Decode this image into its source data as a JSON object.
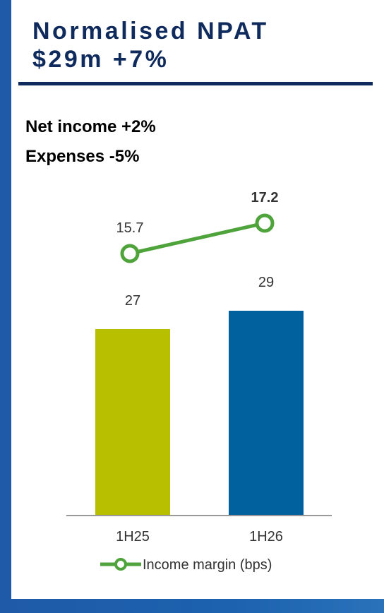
{
  "header": {
    "title_line1": "Normalised NPAT",
    "title_line2": "$29m +7%"
  },
  "kpis": [
    {
      "label": "Net income +2%"
    },
    {
      "label": "Expenses -5%"
    }
  ],
  "colors": {
    "bar_1h25": "#b8bf00",
    "bar_1h26": "#00619e",
    "line": "#4ea33b",
    "navy": "#0f2a5c",
    "frame": "#1f5aa8"
  },
  "chart_data": {
    "type": "bar",
    "categories": [
      "1H25",
      "1H26"
    ],
    "series": [
      {
        "values": [
          27,
          29
        ],
        "value_labels": [
          "27",
          "29"
        ]
      },
      {
        "name": "Income margin (bps)",
        "type": "line",
        "values": [
          15.7,
          17.2
        ],
        "value_labels": [
          "15.7",
          "17.2"
        ]
      }
    ],
    "legend": {
      "entry": "Income margin (bps)",
      "position": "bottom"
    },
    "grid": false
  }
}
